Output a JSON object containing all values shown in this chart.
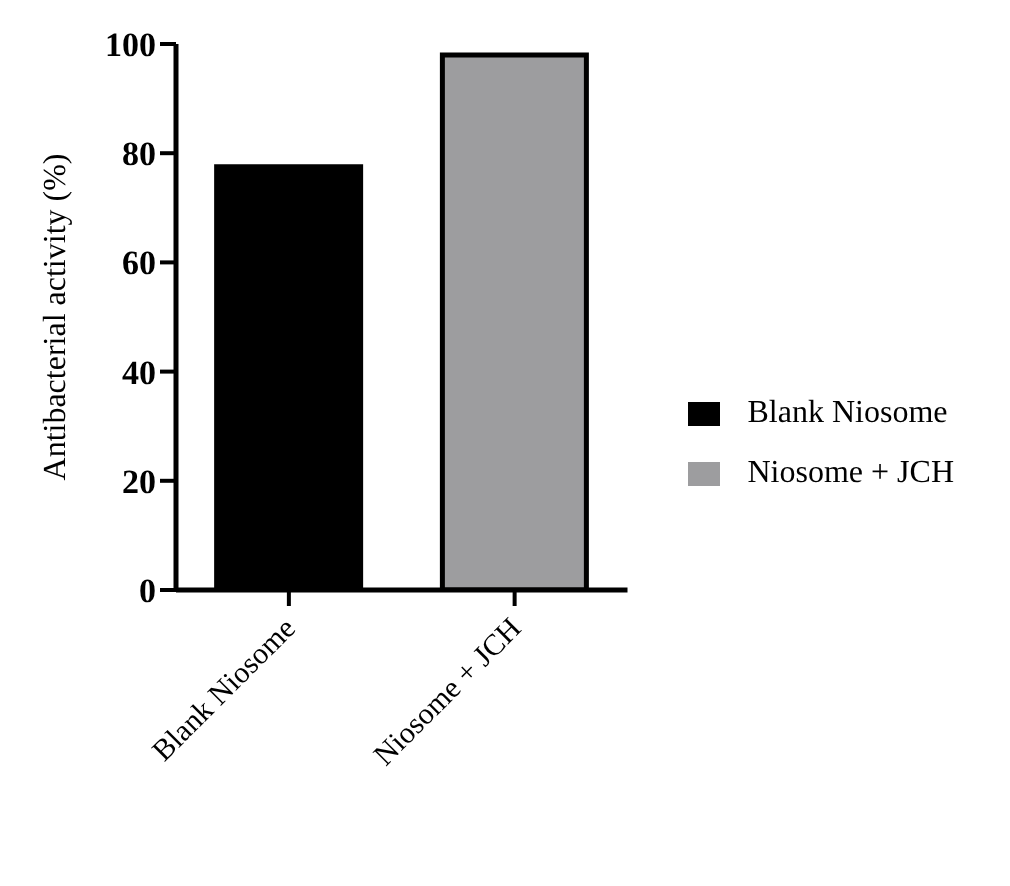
{
  "chart_data": {
    "type": "bar",
    "ylabel": "Antibacterial activity (%)",
    "categories": [
      "Blank Niosome",
      "Niosome + JCH"
    ],
    "stacked": true,
    "series": [
      {
        "name": "Blank Niosome",
        "color": "#000000",
        "values": [
          77.5,
          null
        ]
      },
      {
        "name": "Niosome + JCH",
        "color": "#9d9d9f",
        "values": [
          null,
          98
        ]
      }
    ],
    "ylim": [
      0,
      100
    ],
    "yticks": [
      0,
      20,
      40,
      60,
      80,
      100
    ],
    "grid": false,
    "legend": "right"
  }
}
